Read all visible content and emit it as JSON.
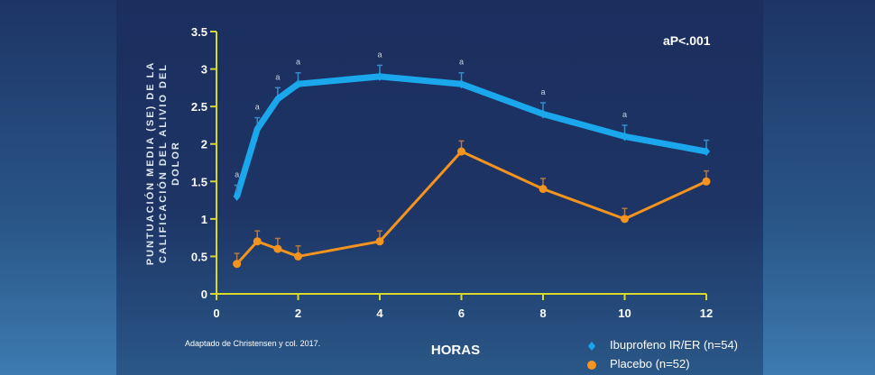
{
  "chart_data": {
    "type": "line",
    "xlabel": "HORAS",
    "ylabel_lines": [
      "PUNTUACIÓN MEDIA (SE) DE LA",
      "CALIFICACIÓN DEL ALIVIO DEL",
      "DOLOR"
    ],
    "xlim": [
      0,
      12
    ],
    "ylim": [
      0,
      3.5
    ],
    "x_ticks": [
      "0",
      "2",
      "4",
      "6",
      "8",
      "10",
      "12"
    ],
    "y_ticks": [
      "0",
      "0.5",
      "1",
      "1.5",
      "2",
      "2.5",
      "3",
      "3.5"
    ],
    "grid": false,
    "annotation": "aP<.001",
    "significance_marker": "a",
    "source_note": "Adaptado de Christensen y col. 2017.",
    "legend_position": "bottom-right",
    "series": [
      {
        "name": "Ibuprofeno IR/ER (n=54)",
        "color": "#1aa7ec",
        "marker": "diamond",
        "x": [
          0.5,
          1,
          1.5,
          2,
          4,
          6,
          8,
          10,
          12
        ],
        "y": [
          1.3,
          2.2,
          2.6,
          2.8,
          2.9,
          2.8,
          2.4,
          2.1,
          1.9
        ],
        "se": [
          0.15,
          0.15,
          0.15,
          0.15,
          0.15,
          0.15,
          0.15,
          0.15,
          0.15
        ],
        "significant": [
          true,
          true,
          true,
          true,
          true,
          true,
          true,
          true,
          false
        ]
      },
      {
        "name": "Placebo (n=52)",
        "color": "#f4941e",
        "marker": "circle",
        "x": [
          0.5,
          1,
          1.5,
          2,
          4,
          6,
          8,
          10,
          12
        ],
        "y": [
          0.4,
          0.7,
          0.6,
          0.5,
          0.7,
          1.9,
          1.4,
          1.0,
          1.5
        ],
        "se": [
          0.14,
          0.14,
          0.14,
          0.14,
          0.14,
          0.14,
          0.14,
          0.14,
          0.14
        ],
        "significant": [
          false,
          false,
          false,
          false,
          false,
          false,
          false,
          false,
          false
        ]
      }
    ],
    "axis_color": "#d7d82a"
  }
}
